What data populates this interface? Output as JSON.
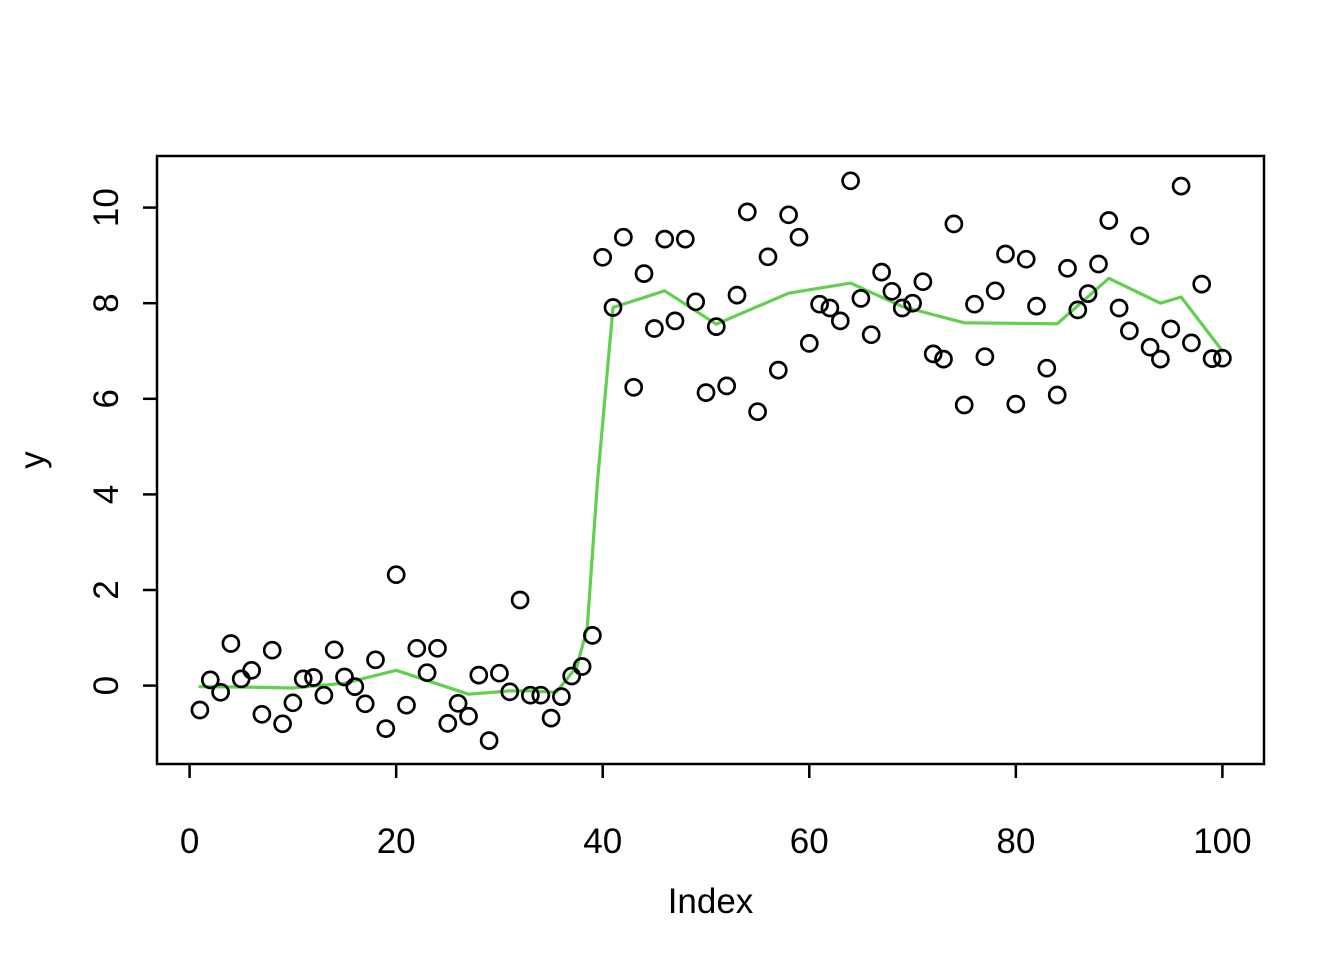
{
  "chart_data": {
    "type": "scatter",
    "title": "",
    "xlabel": "Index",
    "ylabel": "y",
    "x_ticks": [
      0,
      20,
      40,
      60,
      80,
      100
    ],
    "y_ticks": [
      0,
      2,
      4,
      6,
      8,
      10
    ],
    "xlim": [
      -3.2,
      104.1
    ],
    "ylim": [
      -1.64,
      11.08
    ],
    "grid": false,
    "legend": "none",
    "point_style": "open-circle",
    "point_color": "#000000",
    "smoother_color": "#61D04F",
    "background_color": "#FFFFFF",
    "axis_color": "#000000",
    "points_x": [
      1,
      2,
      3,
      4,
      5,
      6,
      7,
      8,
      9,
      10,
      11,
      12,
      13,
      14,
      15,
      16,
      17,
      18,
      19,
      20,
      21,
      22,
      23,
      24,
      25,
      26,
      27,
      28,
      29,
      30,
      31,
      32,
      33,
      34,
      35,
      36,
      37,
      38,
      39,
      40,
      41,
      42,
      43,
      44,
      45,
      46,
      47,
      48,
      49,
      50,
      51,
      52,
      53,
      54,
      55,
      56,
      57,
      58,
      59,
      60,
      61,
      62,
      63,
      64,
      65,
      66,
      67,
      68,
      69,
      70,
      71,
      72,
      73,
      74,
      75,
      76,
      77,
      78,
      79,
      80,
      81,
      82,
      83,
      84,
      85,
      86,
      87,
      88,
      89,
      90,
      91,
      92,
      93,
      94,
      95,
      96,
      97,
      98,
      99,
      100
    ],
    "points_y": [
      -0.51,
      0.12,
      -0.14,
      0.88,
      0.14,
      0.32,
      -0.6,
      0.74,
      -0.8,
      -0.36,
      0.14,
      0.17,
      -0.2,
      0.75,
      0.18,
      -0.02,
      -0.38,
      0.54,
      -0.9,
      2.32,
      -0.41,
      0.78,
      0.27,
      0.78,
      -0.79,
      -0.37,
      -0.64,
      0.22,
      -1.15,
      0.26,
      -0.13,
      1.79,
      -0.2,
      -0.2,
      -0.68,
      -0.23,
      0.2,
      0.4,
      1.05,
      8.96,
      7.91,
      9.38,
      6.24,
      8.62,
      7.47,
      9.34,
      7.63,
      9.34,
      8.03,
      6.13,
      7.51,
      6.27,
      8.17,
      9.91,
      5.73,
      8.97,
      6.6,
      9.85,
      9.38,
      7.16,
      7.98,
      7.9,
      7.63,
      10.56,
      8.1,
      7.34,
      8.65,
      8.25,
      7.9,
      8.0,
      8.45,
      6.94,
      6.83,
      9.66,
      5.87,
      7.98,
      6.88,
      8.26,
      9.03,
      5.89,
      8.92,
      7.94,
      6.64,
      6.08,
      8.73,
      7.86,
      8.2,
      8.82,
      9.73,
      7.9,
      7.42,
      9.41,
      7.08,
      6.83,
      7.46,
      10.45,
      7.17,
      8.4,
      6.84,
      6.85
    ],
    "smoother_line": [
      [
        1,
        -0.02
      ],
      [
        5,
        -0.03
      ],
      [
        10,
        -0.05
      ],
      [
        15,
        0.05
      ],
      [
        20,
        0.32
      ],
      [
        27,
        -0.18
      ],
      [
        31,
        -0.11
      ],
      [
        33,
        -0.11
      ],
      [
        35.5,
        -0.14
      ],
      [
        37.5,
        0.4
      ],
      [
        38.5,
        1.2
      ],
      [
        39.5,
        4.3
      ],
      [
        41,
        7.91
      ],
      [
        46,
        8.26
      ],
      [
        51,
        7.56
      ],
      [
        58,
        8.21
      ],
      [
        64,
        8.42
      ],
      [
        69,
        7.93
      ],
      [
        75,
        7.59
      ],
      [
        84,
        7.57
      ],
      [
        89,
        8.52
      ],
      [
        94,
        8.0
      ],
      [
        96,
        8.13
      ],
      [
        100,
        7.0
      ]
    ]
  }
}
